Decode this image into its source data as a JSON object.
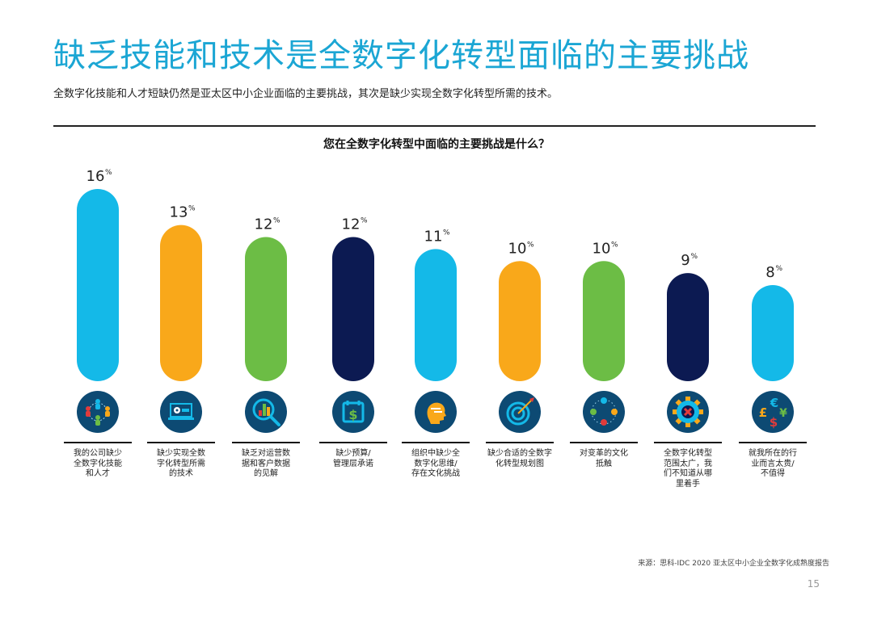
{
  "header": {
    "title": "缺乏技能和技术是全数字化转型面临的主要挑战",
    "subtitle": "全数字化技能和人才短缺仍然是亚太区中小企业面临的主要挑战，其次是缺少实现全数字化转型所需的技术。"
  },
  "chart_data": {
    "type": "bar",
    "title": "您在全数字化转型中面临的主要挑战是什么？",
    "xlabel": "",
    "ylabel": "",
    "unit": "%",
    "ylim": [
      0,
      16
    ],
    "grid": false,
    "categories": [
      "我的公司缺少全数字化技能和人才",
      "缺少实现全数字化转型所需的技术",
      "缺乏对运营数据和客户数据的见解",
      "缺少预算/管理层承诺",
      "组织中缺少全数字化思维/存在文化挑战",
      "缺少合适的全数字化转型规划图",
      "对变革的文化抵触",
      "全数字化转型范围太广，我们不知道从哪里着手",
      "就我所在的行业而言太贵/不值得"
    ],
    "category_lines": [
      [
        "我的公司缺少",
        "全数字化技能",
        "和人才"
      ],
      [
        "缺少实现全数",
        "字化转型所需",
        "的技术"
      ],
      [
        "缺乏对运营数",
        "据和客户数据",
        "的见解"
      ],
      [
        "缺少预算/",
        "管理层承诺"
      ],
      [
        "组织中缺少全",
        "数字化思维/",
        "存在文化挑战"
      ],
      [
        "缺少合适的全数字",
        "化转型规划图"
      ],
      [
        "对变革的文化",
        "抵触"
      ],
      [
        "全数字化转型",
        "范围太广，我",
        "们不知道从哪",
        "里着手"
      ],
      [
        "就我所在的行",
        "业而言太贵/",
        "不值得"
      ]
    ],
    "values": [
      16,
      13,
      12,
      12,
      11,
      10,
      10,
      9,
      8
    ],
    "value_labels": [
      "16",
      "13",
      "12",
      "12",
      "11",
      "10",
      "10",
      "9",
      "8"
    ],
    "bar_colors": [
      "#14b9e8",
      "#f9a81a",
      "#6cbd45",
      "#0c1a52",
      "#14b9e8",
      "#f9a81a",
      "#6cbd45",
      "#0c1a52",
      "#14b9e8"
    ],
    "icons": [
      "people-network-icon",
      "laptop-gear-icon",
      "magnifier-chart-icon",
      "calendar-dollar-icon",
      "head-mind-icon",
      "target-arrow-icon",
      "map-pins-icon",
      "gear-cross-icon",
      "currency-icon"
    ]
  },
  "footer": {
    "source": "来源：思科-IDC 2020 亚太区中小企业全数字化成熟度报告",
    "page_number": "15"
  },
  "colors": {
    "title": "#1ba6d4",
    "icon_bg": "#0d4a73"
  }
}
